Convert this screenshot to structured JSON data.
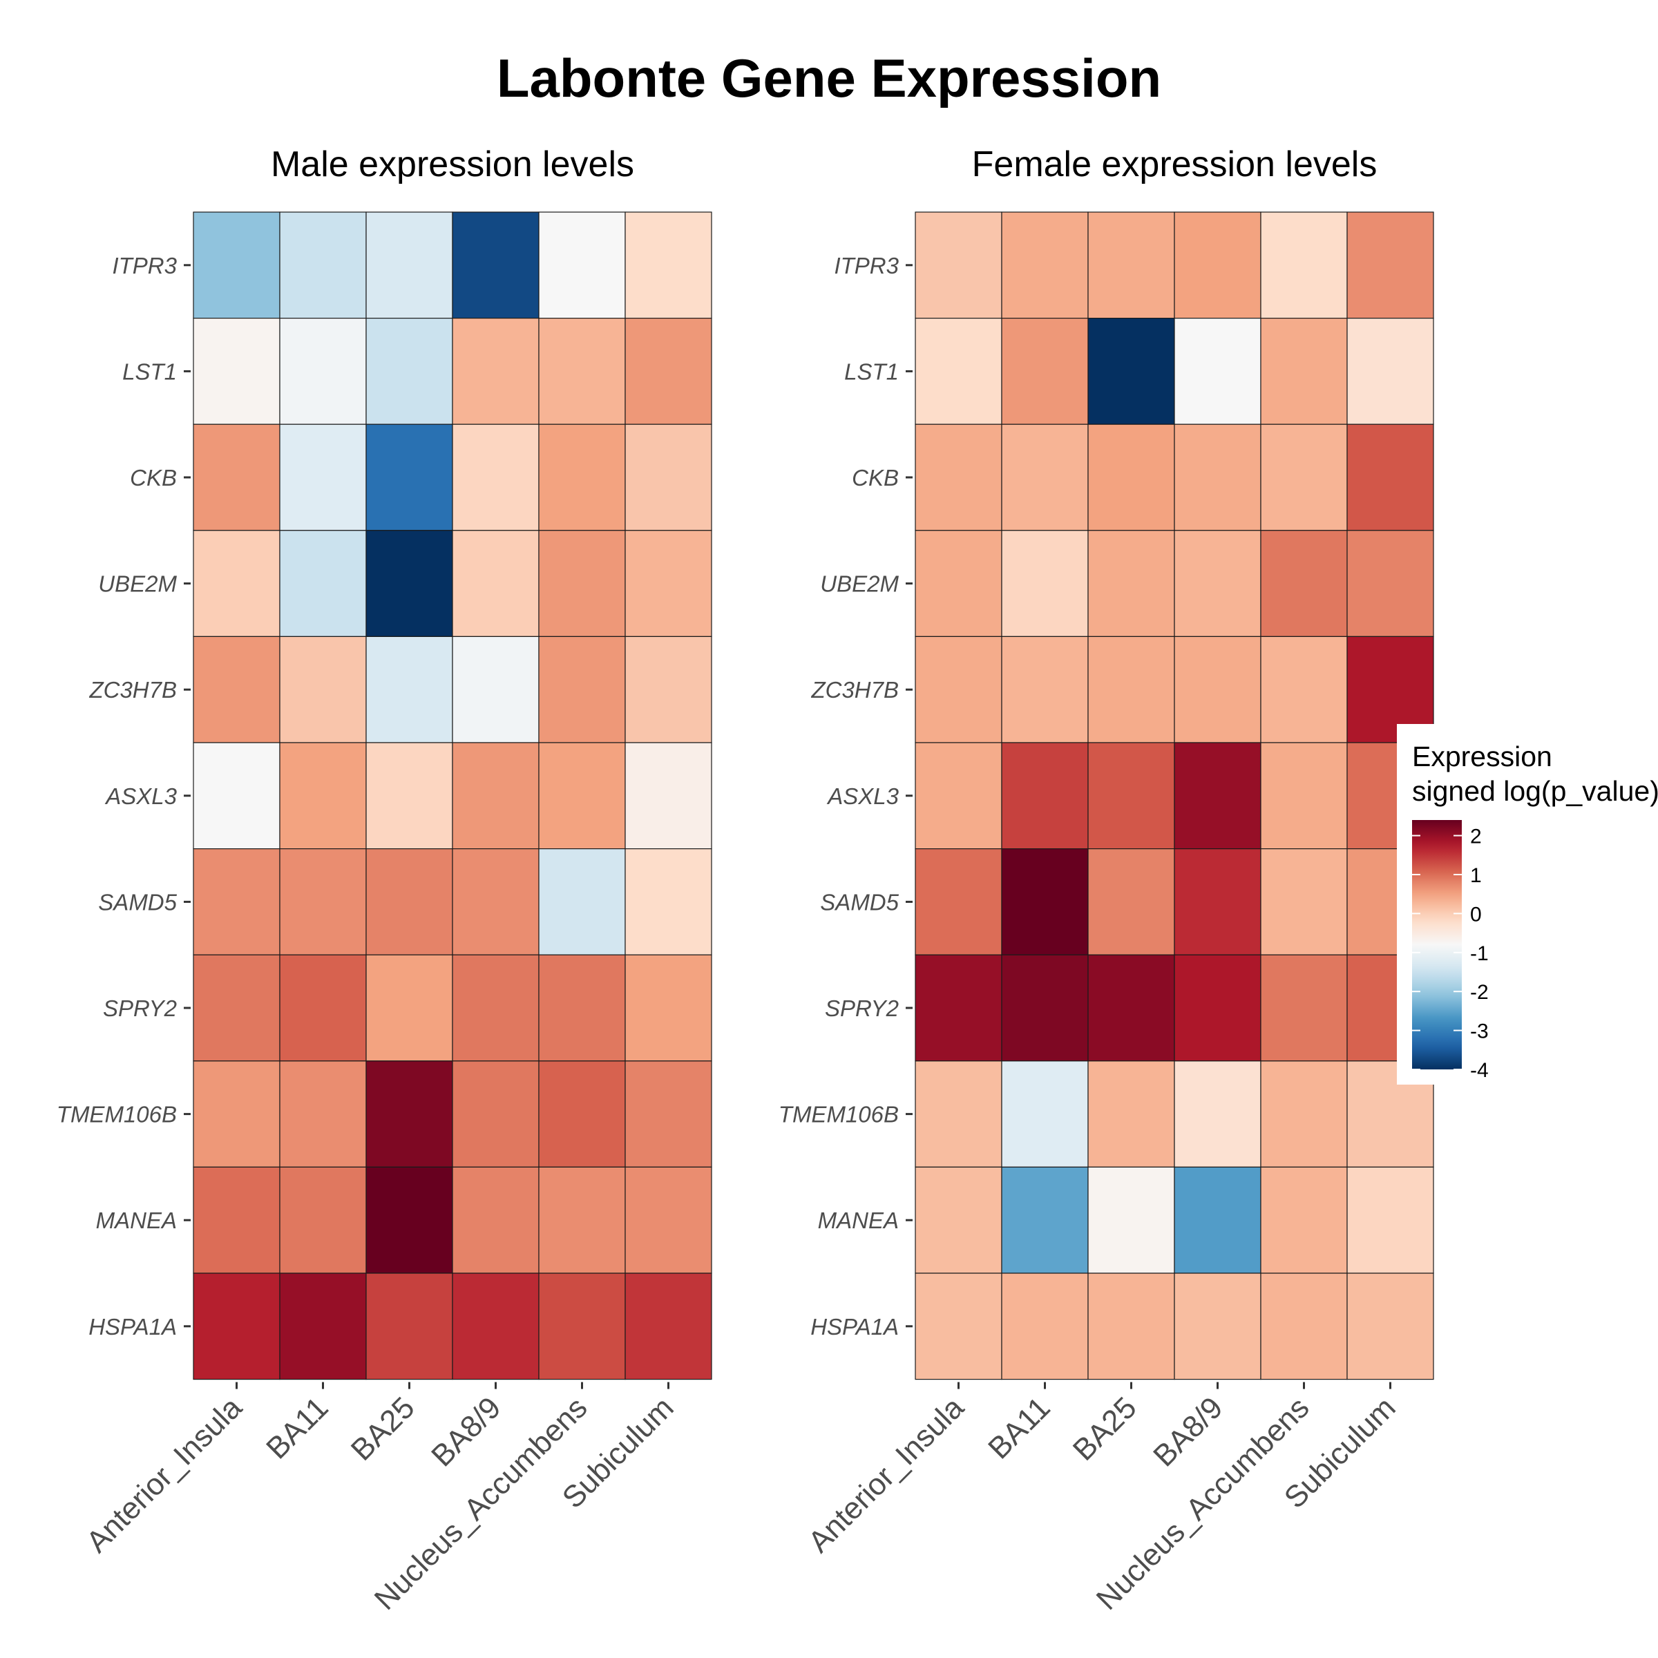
{
  "title": "Labonte Gene Expression",
  "chart_data": [
    {
      "type": "heatmap",
      "title": "Male expression levels",
      "x": [
        "Anterior_Insula",
        "BA11",
        "BA25",
        "BA8/9",
        "Nucleus_Accumbens",
        "Subiculum"
      ],
      "y": [
        "ITPR3",
        "LST1",
        "CKB",
        "UBE2M",
        "ZC3H7B",
        "ASXL3",
        "SAMD5",
        "SPRY2",
        "TMEM106B",
        "MANEA",
        "HSPA1A"
      ],
      "values": [
        [
          -2.1,
          -1.5,
          -1.3,
          -3.7,
          -0.8,
          -0.2
        ],
        [
          -0.7,
          -0.9,
          -1.5,
          0.3,
          0.3,
          0.6
        ],
        [
          0.6,
          -1.2,
          -3.2,
          -0.1,
          0.5,
          0.1
        ],
        [
          0.0,
          -1.5,
          -4.0,
          0.0,
          0.6,
          0.3
        ],
        [
          0.6,
          0.1,
          -1.3,
          -0.9,
          0.6,
          0.1
        ],
        [
          -0.8,
          0.5,
          -0.1,
          0.6,
          0.5,
          -0.6
        ],
        [
          0.7,
          0.7,
          0.8,
          0.7,
          -1.4,
          -0.2
        ],
        [
          0.9,
          1.1,
          0.5,
          0.9,
          0.9,
          0.5
        ],
        [
          0.6,
          0.7,
          2.2,
          0.9,
          1.1,
          0.8
        ],
        [
          1.0,
          0.9,
          2.4,
          0.8,
          0.7,
          0.7
        ],
        [
          1.7,
          2.0,
          1.4,
          1.6,
          1.3,
          1.5
        ]
      ]
    },
    {
      "type": "heatmap",
      "title": "Female expression levels",
      "x": [
        "Anterior_Insula",
        "BA11",
        "BA25",
        "BA8/9",
        "Nucleus_Accumbens",
        "Subiculum"
      ],
      "y": [
        "ITPR3",
        "LST1",
        "CKB",
        "UBE2M",
        "ZC3H7B",
        "ASXL3",
        "SAMD5",
        "SPRY2",
        "TMEM106B",
        "MANEA",
        "HSPA1A"
      ],
      "values": [
        [
          0.1,
          0.4,
          0.4,
          0.5,
          -0.2,
          0.7
        ],
        [
          -0.2,
          0.6,
          -4.0,
          -0.8,
          0.4,
          -0.3
        ],
        [
          0.4,
          0.3,
          0.5,
          0.4,
          0.3,
          1.2
        ],
        [
          0.4,
          -0.1,
          0.4,
          0.3,
          0.9,
          0.8
        ],
        [
          0.4,
          0.3,
          0.4,
          0.4,
          0.3,
          1.8
        ],
        [
          0.4,
          1.4,
          1.2,
          2.0,
          0.4,
          1.0
        ],
        [
          1.0,
          2.4,
          0.8,
          1.6,
          0.3,
          0.6
        ],
        [
          2.0,
          2.2,
          2.1,
          1.8,
          0.9,
          1.1
        ],
        [
          0.2,
          -1.2,
          0.3,
          -0.3,
          0.3,
          0.1
        ],
        [
          0.2,
          -2.5,
          -0.7,
          -2.6,
          0.3,
          -0.1
        ],
        [
          0.2,
          0.3,
          0.3,
          0.2,
          0.3,
          0.2
        ]
      ]
    }
  ],
  "legend": {
    "title_line1": "Expression",
    "title_line2": "signed log(p_value)",
    "ticks": [
      "2",
      "1",
      "0",
      "-1",
      "-2",
      "-3",
      "-4"
    ],
    "tick_values": [
      2,
      1,
      0,
      -1,
      -2,
      -3,
      -4
    ],
    "range": [
      -4,
      2.4
    ],
    "colors": [
      "#053061",
      "#2166AC",
      "#4393C3",
      "#92C5DE",
      "#D1E5F0",
      "#F7F7F7",
      "#FDDBC7",
      "#F4A582",
      "#D6604D",
      "#B2182B",
      "#67001F"
    ]
  }
}
